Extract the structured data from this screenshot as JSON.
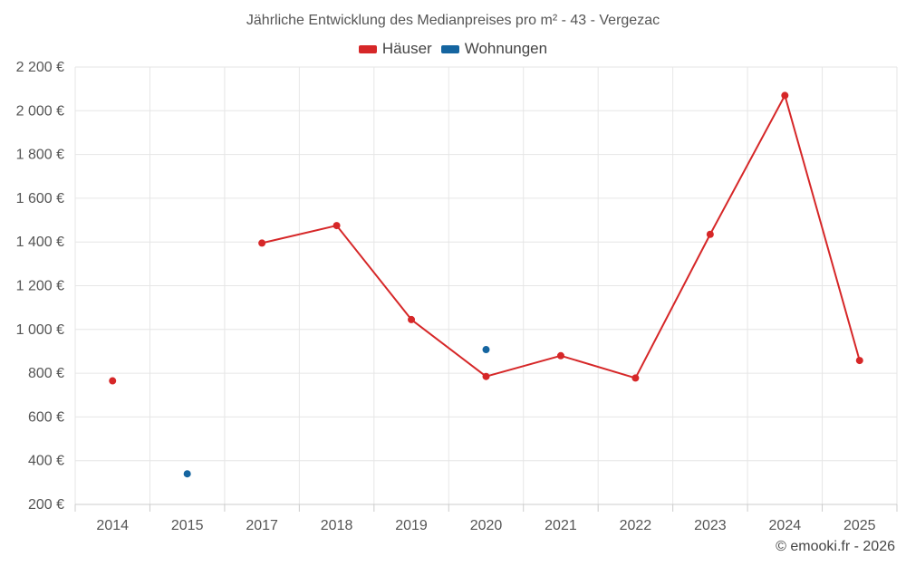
{
  "chart_data": {
    "type": "line",
    "title": "Jährliche Entwicklung des Medianpreises pro m² - 43 - Vergezac",
    "categories": [
      "2014",
      "2015",
      "2017",
      "2018",
      "2019",
      "2020",
      "2021",
      "2022",
      "2023",
      "2024",
      "2025"
    ],
    "ylim": [
      200,
      2200
    ],
    "yticks": [
      200,
      400,
      600,
      800,
      1000,
      1200,
      1400,
      1600,
      1800,
      2000,
      2200
    ],
    "ytick_labels": [
      "200 €",
      "400 €",
      "600 €",
      "800 €",
      "1 000 €",
      "1 200 €",
      "1 400 €",
      "1 600 €",
      "1 800 €",
      "2 000 €",
      "2 200 €"
    ],
    "grid": true,
    "legend_position": "top-center",
    "series": [
      {
        "name": "Häuser",
        "color": "#d62728",
        "values": [
          765,
          null,
          1395,
          1475,
          1045,
          785,
          880,
          778,
          1435,
          2070,
          858
        ]
      },
      {
        "name": "Wohnungen",
        "color": "#1565a0",
        "values": [
          null,
          340,
          null,
          null,
          null,
          908,
          null,
          null,
          null,
          null,
          null
        ]
      }
    ]
  },
  "credit": "© emooki.fr - 2026"
}
